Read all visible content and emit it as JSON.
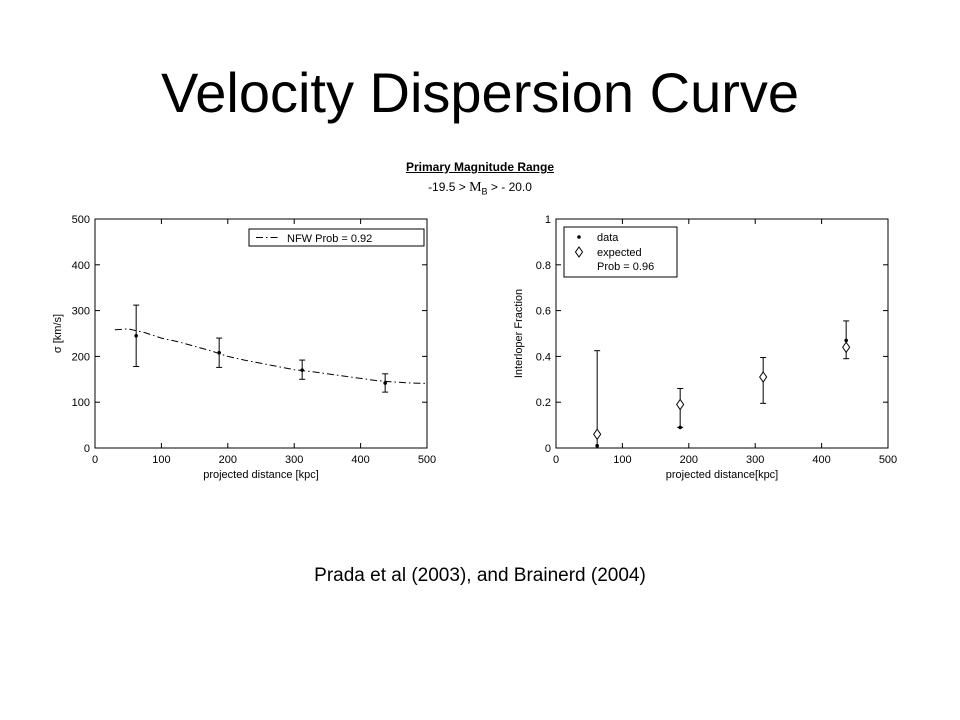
{
  "slide": {
    "title": "Velocity Dispersion Curve",
    "caption": "Prada et al (2003),  and Brainerd (2004)"
  },
  "figure": {
    "title": "Primary Magnitude Range",
    "subtitle_left": "-19.5 > ",
    "subtitle_symbol": "M",
    "subtitle_sub": "B",
    "subtitle_right": " > - 20.0"
  },
  "chart_data": [
    {
      "type": "scatter",
      "xlabel": "projected distance [kpc]",
      "ylabel": "σ [km/s]",
      "xlim": [
        0,
        500
      ],
      "ylim": [
        0,
        500
      ],
      "xticks": [
        0,
        100,
        200,
        300,
        400,
        500
      ],
      "yticks": [
        0,
        100,
        200,
        300,
        400,
        500
      ],
      "legend": {
        "position": "top-right",
        "entries": [
          "NFW Prob = 0.92"
        ]
      },
      "series": [
        {
          "style": "points-with-errorbars",
          "x": [
            62,
            187,
            312,
            437
          ],
          "y": [
            245,
            208,
            170,
            142
          ],
          "yerr_low": [
            178,
            176,
            150,
            122
          ],
          "yerr_high": [
            312,
            240,
            192,
            162
          ]
        },
        {
          "name": "NFW Prob = 0.92",
          "style": "dash-dot",
          "x": [
            30,
            50,
            75,
            100,
            125,
            150,
            175,
            200,
            225,
            250,
            275,
            300,
            325,
            350,
            375,
            400,
            425,
            450,
            475,
            500
          ],
          "y": [
            258,
            260,
            252,
            240,
            232,
            222,
            212,
            200,
            192,
            185,
            178,
            171,
            167,
            162,
            157,
            152,
            147,
            144,
            142,
            141
          ]
        }
      ]
    },
    {
      "type": "scatter",
      "xlabel": "projected distance[kpc]",
      "ylabel": "Interloper Fraction",
      "xlim": [
        0,
        500
      ],
      "ylim": [
        0,
        1
      ],
      "xticks": [
        0,
        100,
        200,
        300,
        400,
        500
      ],
      "yticks": [
        0,
        0.2,
        0.4,
        0.6,
        0.8,
        1
      ],
      "ytick_labels": [
        "0",
        "0.2",
        "0.4",
        "0.6",
        "0.8",
        "1"
      ],
      "legend": {
        "position": "top-left",
        "entries": [
          "data",
          "expected",
          "Prob = 0.96"
        ]
      },
      "series": [
        {
          "name": "data",
          "style": "points-with-errorbars",
          "x": [
            62,
            187,
            312,
            437
          ],
          "y": [
            0.01,
            0.09,
            0.3,
            0.47
          ],
          "yerr_low": [
            0,
            0.09,
            0.195,
            0.39
          ],
          "yerr_high": [
            0.425,
            0.26,
            0.395,
            0.555
          ]
        },
        {
          "name": "expected",
          "style": "diamonds",
          "x": [
            62,
            187,
            312,
            437
          ],
          "y": [
            0.06,
            0.19,
            0.31,
            0.44
          ]
        }
      ]
    }
  ]
}
